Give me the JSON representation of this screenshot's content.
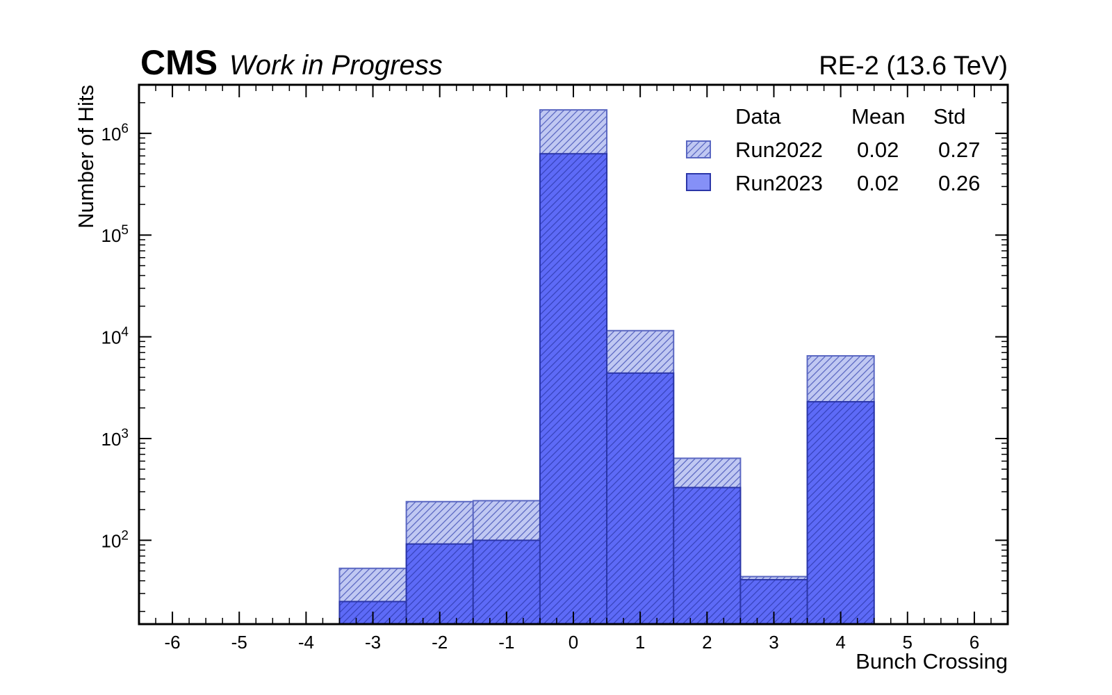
{
  "header": {
    "experiment": "CMS",
    "status": "Work in Progress",
    "right_label": "RE-2 (13.6 TeV)"
  },
  "colors": {
    "run2022_fill": "#c0c8f2",
    "run2022_edge": "#5a67c2",
    "run2023_fill": "#5d6af7",
    "run2023_edge": "#2b36a8",
    "axis": "#000000"
  },
  "legend": {
    "header": {
      "data": "Data",
      "mean": "Mean",
      "std": "Std"
    },
    "placement": "top-right",
    "rows": [
      {
        "name": "Run2022",
        "mean": "0.02",
        "std": "0.27"
      },
      {
        "name": "Run2023",
        "mean": "0.02",
        "std": "0.26"
      }
    ]
  },
  "chart_data": {
    "type": "bar",
    "histogram": true,
    "xlabel": "Bunch Crossing",
    "ylabel": "Number of Hits",
    "xlim": [
      -6.5,
      6.5
    ],
    "ylim": [
      15,
      3000000
    ],
    "yscale": "log",
    "xticks": [
      "-6",
      "-5",
      "-4",
      "-3",
      "-2",
      "-1",
      "0",
      "1",
      "2",
      "3",
      "4",
      "5",
      "6"
    ],
    "yticks": [
      {
        "value": 100,
        "base": "10",
        "exp": "2"
      },
      {
        "value": 1000,
        "base": "10",
        "exp": "3"
      },
      {
        "value": 10000,
        "base": "10",
        "exp": "4"
      },
      {
        "value": 100000,
        "base": "10",
        "exp": "5"
      },
      {
        "value": 1000000,
        "base": "10",
        "exp": "6"
      }
    ],
    "categories": [
      -3,
      -2,
      -1,
      0,
      1,
      2,
      3,
      4
    ],
    "series": [
      {
        "name": "Run2022",
        "hatched": true,
        "values": [
          53,
          240,
          245,
          1700000,
          11500,
          640,
          44,
          6500
        ]
      },
      {
        "name": "Run2023",
        "hatched": true,
        "values": [
          25,
          92,
          100,
          630000,
          4400,
          330,
          41,
          2300
        ]
      }
    ],
    "grid": false
  }
}
